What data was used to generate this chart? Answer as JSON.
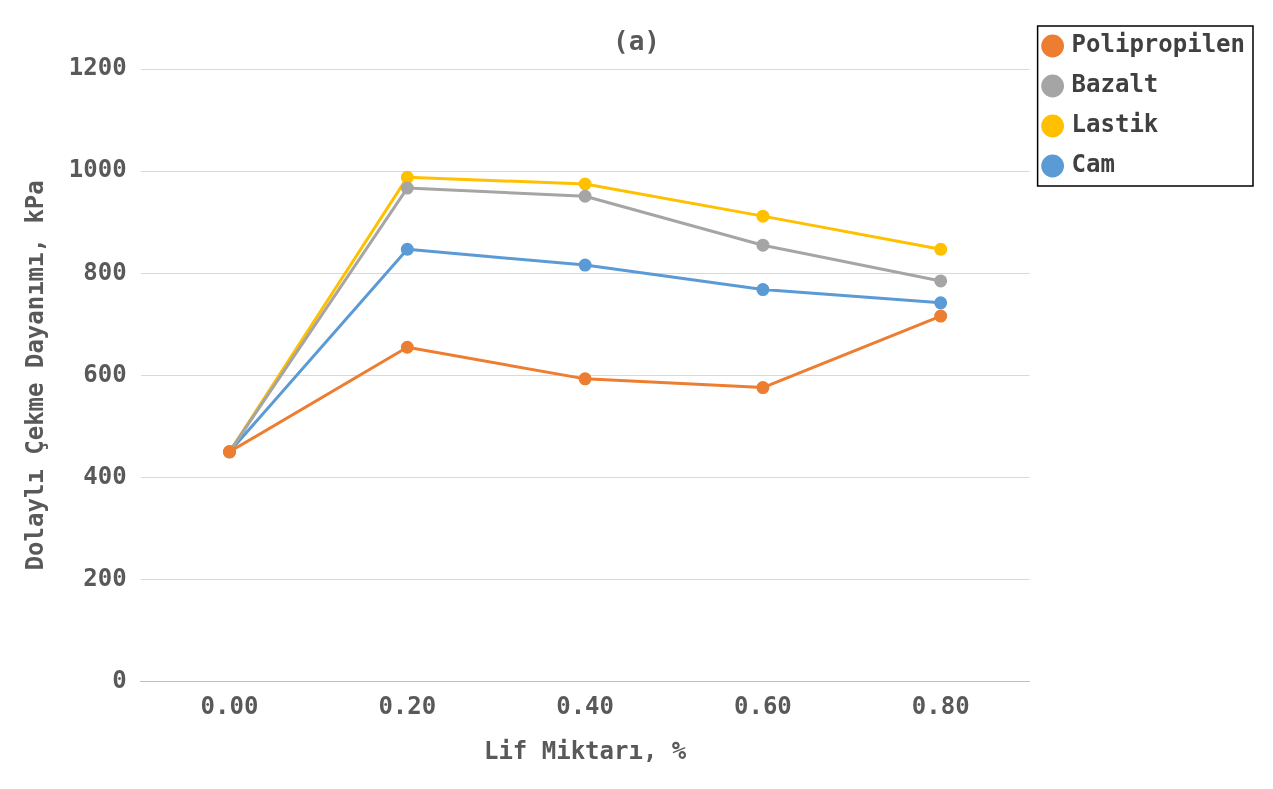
{
  "chart_data": {
    "type": "line",
    "title": "(a)",
    "xlabel": "Lif Miktarı, %",
    "ylabel": "Dolaylı Çekme Dayanımı, kPa",
    "categories": [
      "0.00",
      "0.20",
      "0.40",
      "0.60",
      "0.80"
    ],
    "series": [
      {
        "name": "Polipropilen",
        "color": "#ed7d31",
        "values": [
          450,
          655,
          593,
          576,
          716
        ]
      },
      {
        "name": "Bazalt",
        "color": "#a5a5a5",
        "values": [
          450,
          967,
          951,
          855,
          785
        ]
      },
      {
        "name": "Lastik",
        "color": "#ffc000",
        "values": [
          450,
          988,
          975,
          912,
          847
        ]
      },
      {
        "name": "Cam",
        "color": "#5b9bd5",
        "values": [
          450,
          847,
          816,
          768,
          742
        ]
      }
    ],
    "ylim": [
      0,
      1200
    ],
    "yticks": [
      0,
      200,
      400,
      600,
      800,
      1000,
      1200
    ],
    "grid": "y",
    "legend": "top right",
    "marker": "circle"
  }
}
